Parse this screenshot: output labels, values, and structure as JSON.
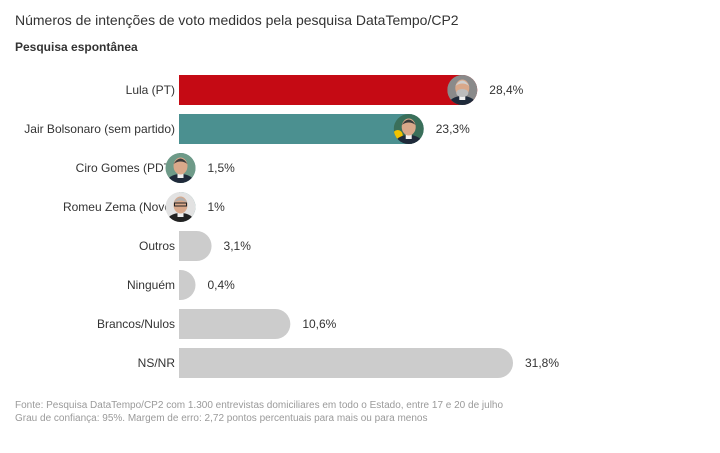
{
  "title": "Números de intenções de voto medidos pela pesquisa DataTempo/CP2",
  "subtitle": "Pesquisa espontânea",
  "footer": {
    "source": "Fonte: Pesquisa DataTempo/CP2 com 1.300 entrevistas domiciliares em todo o Estado, entre 17 e 20 de julho",
    "confidence": "Grau de confiança: 95%. Margem de erro: 2,72 pontos percentuais para mais ou para menos"
  },
  "chart_data": {
    "type": "bar",
    "orientation": "horizontal",
    "categories": [
      "Lula (PT)",
      "Jair Bolsonaro (sem partido)",
      "Ciro Gomes (PDT)",
      "Romeu Zema (Novo)",
      "Outros",
      "Ninguém",
      "Brancos/Nulos",
      "NS/NR"
    ],
    "values": [
      28.4,
      23.3,
      1.5,
      1,
      3.1,
      0.4,
      10.6,
      31.8
    ],
    "data_labels": [
      "28,4%",
      "23,3%",
      "1,5%",
      "1%",
      "3,1%",
      "0,4%",
      "10,6%",
      "31,8%"
    ],
    "colors": [
      "#c50a14",
      "#4b9090",
      "#4b9090",
      "#4b9090",
      "#cccccc",
      "#cccccc",
      "#cccccc",
      "#cccccc"
    ],
    "avatars": [
      "lula-photo",
      "bolsonaro-photo",
      "ciro-photo",
      "zema-photo",
      null,
      null,
      null,
      null
    ],
    "xlim": [
      0,
      31.8
    ],
    "grid": false,
    "legend": "none"
  }
}
